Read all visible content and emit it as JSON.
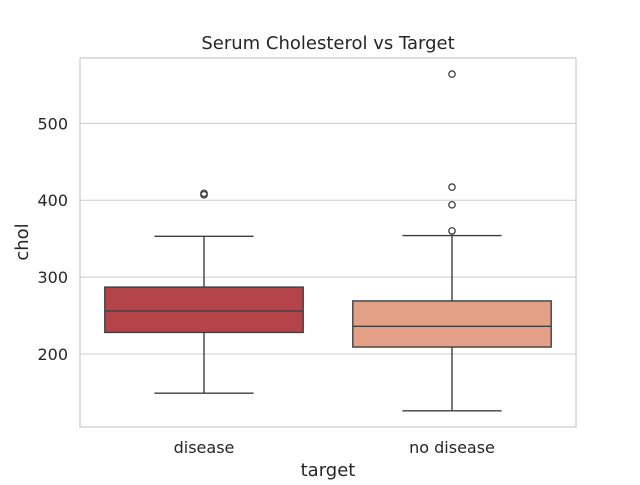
{
  "chart_data": {
    "type": "box",
    "title": "Serum Cholesterol vs Target",
    "xlabel": "target",
    "ylabel": "chol",
    "categories": [
      "disease",
      "no disease"
    ],
    "y_ticks": [
      200,
      300,
      400,
      500
    ],
    "ylim": [
      105,
      585
    ],
    "grid": "horizontal",
    "boxes": [
      {
        "category": "disease",
        "whisker_low": 149,
        "q1": 228,
        "median": 256,
        "q3": 287,
        "whisker_high": 353,
        "outliers": [
          407,
          409
        ],
        "color": "#b5434a"
      },
      {
        "category": "no disease",
        "whisker_low": 126,
        "q1": 209,
        "median": 236,
        "q3": 269,
        "whisker_high": 354,
        "outliers": [
          360,
          394,
          417,
          564
        ],
        "color": "#e4a086"
      }
    ]
  }
}
